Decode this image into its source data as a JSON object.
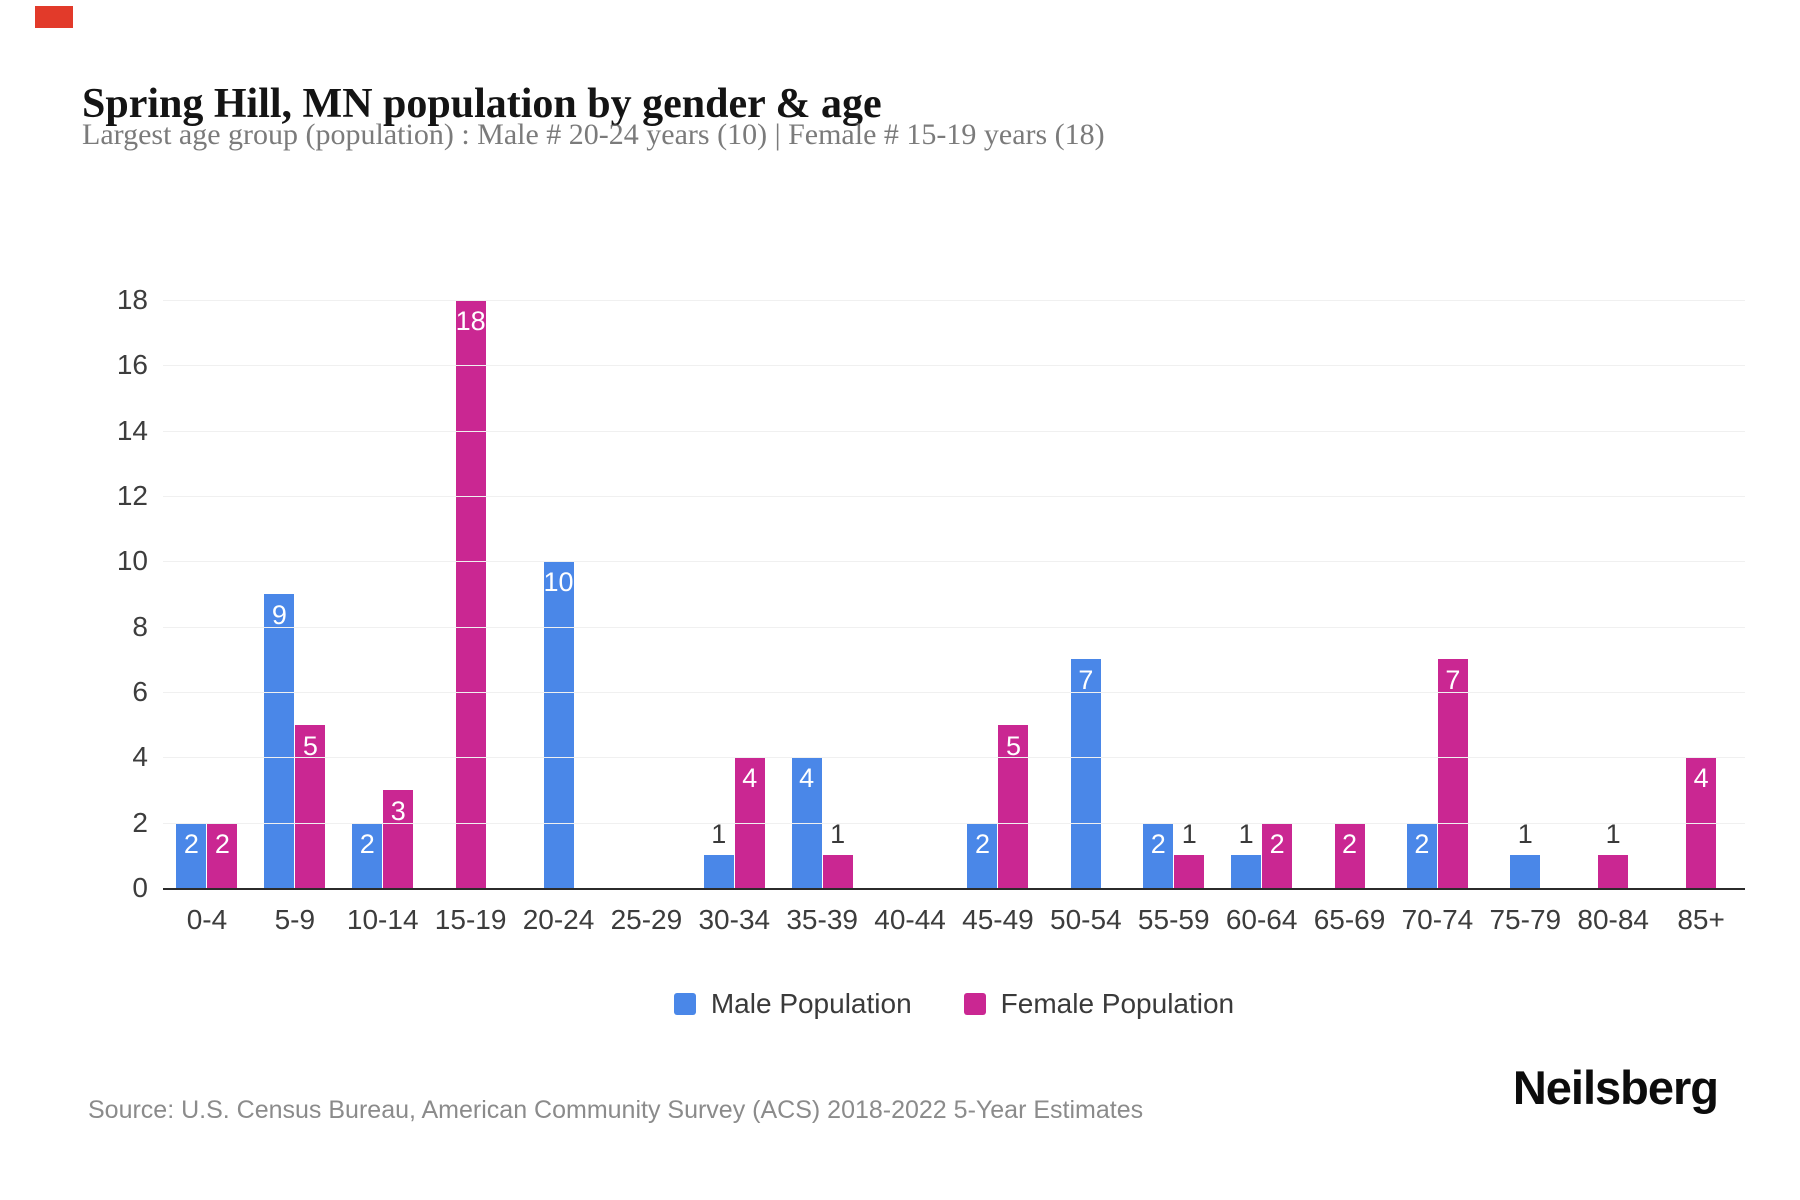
{
  "page": {
    "title": "Spring Hill, MN population by gender & age",
    "subtitle": "Largest age group (population) : Male # 20-24 years (10) | Female # 15-19 years (18)",
    "source": "Source: U.S. Census Bureau, American Community Survey (ACS) 2018-2022 5-Year Estimates",
    "brand": "Neilsberg"
  },
  "colors": {
    "male": "#4a87e8",
    "female": "#ca2792",
    "gridline": "#f0f0f0",
    "axis_line": "#2b2b2b",
    "value_label_inside": "#ffffff",
    "value_label_above": "#3a3a3a",
    "red_marker": "#e23a2a"
  },
  "chart_data": {
    "type": "bar",
    "title": "Spring Hill, MN population by gender & age",
    "subtitle": "Largest age group (population) : Male # 20-24 years (10) | Female # 15-19 years (18)",
    "categories": [
      "0-4",
      "5-9",
      "10-14",
      "15-19",
      "20-24",
      "25-29",
      "30-34",
      "35-39",
      "40-44",
      "45-49",
      "50-54",
      "55-59",
      "60-64",
      "65-69",
      "70-74",
      "75-79",
      "80-84",
      "85+"
    ],
    "series": [
      {
        "name": "Male Population",
        "color": "#4a87e8",
        "values": [
          2,
          9,
          2,
          0,
          10,
          0,
          1,
          4,
          0,
          2,
          7,
          2,
          1,
          0,
          2,
          1,
          0,
          0
        ]
      },
      {
        "name": "Female Population",
        "color": "#ca2792",
        "values": [
          2,
          5,
          3,
          18,
          0,
          0,
          4,
          1,
          0,
          5,
          0,
          1,
          2,
          2,
          7,
          0,
          1,
          4
        ]
      }
    ],
    "xlabel": "",
    "ylabel": "",
    "ylim": [
      0,
      18
    ],
    "yticks": [
      0,
      2,
      4,
      6,
      8,
      10,
      12,
      14,
      16,
      18
    ],
    "grid": "horizontal",
    "legend_position": "bottom",
    "value_label_rule": "values >= 2 shown white inside bar top; value 1 shown dark above bar; 0 omitted"
  }
}
